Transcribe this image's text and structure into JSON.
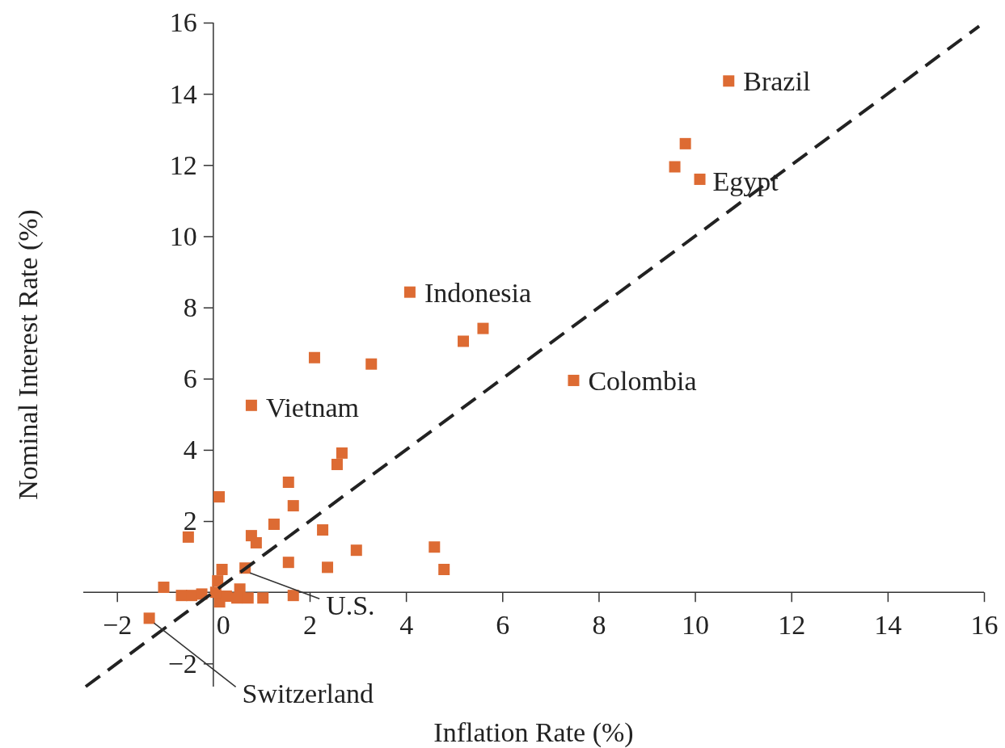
{
  "chart_data": {
    "type": "scatter",
    "xlabel": "Inflation Rate (%)",
    "ylabel": "Nominal Interest Rate (%)",
    "xlim": [
      -2.7,
      16
    ],
    "ylim": [
      -2.65,
      16
    ],
    "xticks": [
      {
        "value": -2,
        "label": "−2"
      },
      0,
      2,
      4,
      6,
      8,
      10,
      12,
      14,
      16
    ],
    "yticks": [
      {
        "value": -2,
        "label": "−2"
      },
      2,
      4,
      6,
      8,
      10,
      12,
      14,
      16
    ],
    "grid": false,
    "marker": "square",
    "series": [
      {
        "color": "#dd6b33",
        "x": [
          10.7,
          9.8,
          9.58,
          10.1,
          7.48,
          4.08,
          5.6,
          5.19,
          2.1,
          3.28,
          0.79,
          2.67,
          2.57,
          1.56,
          0.12,
          1.66,
          1.26,
          2.27,
          -0.52,
          0.79,
          0.89,
          2.97,
          4.59,
          4.79,
          1.56,
          2.37,
          0.66,
          0.18,
          0.09,
          -1.03,
          1.66,
          0.55,
          -0.66,
          -0.45,
          -0.24,
          0.13,
          0.27,
          0.49,
          0.72,
          1.03,
          0.05,
          -1.33
        ],
        "values": [
          14.36,
          12.6,
          11.95,
          11.6,
          5.95,
          8.43,
          7.41,
          7.05,
          6.59,
          6.41,
          5.25,
          3.91,
          3.59,
          3.09,
          2.68,
          2.43,
          1.91,
          1.75,
          1.55,
          1.59,
          1.39,
          1.18,
          1.27,
          0.64,
          0.84,
          0.7,
          0.68,
          0.64,
          0.32,
          0.14,
          -0.09,
          0.09,
          -0.09,
          -0.09,
          -0.05,
          -0.27,
          -0.11,
          -0.16,
          -0.16,
          -0.16,
          0,
          -0.73
        ]
      },
      {
        "type": "line",
        "color": "#222222",
        "line_style": "dashed",
        "marker": "none",
        "x": [
          -2.65,
          15.9
        ],
        "values": [
          -2.65,
          15.9
        ]
      }
    ],
    "annotations": [
      {
        "text": "Brazil",
        "x": 10.7,
        "y": 14.36
      },
      {
        "text": "Egypt",
        "x": 10.1,
        "y": 11.6
      },
      {
        "text": "Indonesia",
        "x": 4.08,
        "y": 8.43
      },
      {
        "text": "Colombia",
        "x": 7.48,
        "y": 5.95
      },
      {
        "text": "Vietnam",
        "x": 0.79,
        "y": 5.25
      },
      {
        "text": "U.S.",
        "x": 0.66,
        "y": 0.68
      },
      {
        "text": "Switzerland",
        "x": -1.33,
        "y": -0.73
      }
    ]
  }
}
